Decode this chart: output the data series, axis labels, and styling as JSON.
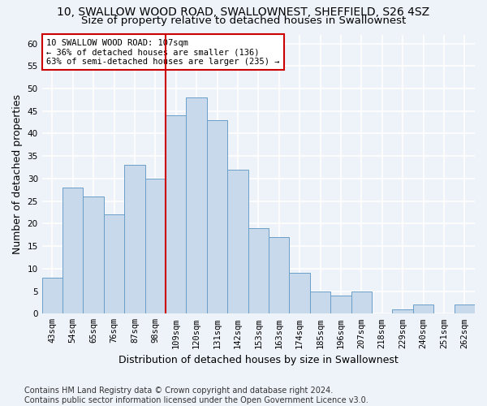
{
  "title": "10, SWALLOW WOOD ROAD, SWALLOWNEST, SHEFFIELD, S26 4SZ",
  "subtitle": "Size of property relative to detached houses in Swallownest",
  "xlabel": "Distribution of detached houses by size in Swallownest",
  "ylabel": "Number of detached properties",
  "categories": [
    "43sqm",
    "54sqm",
    "65sqm",
    "76sqm",
    "87sqm",
    "98sqm",
    "109sqm",
    "120sqm",
    "131sqm",
    "142sqm",
    "153sqm",
    "163sqm",
    "174sqm",
    "185sqm",
    "196sqm",
    "207sqm",
    "218sqm",
    "229sqm",
    "240sqm",
    "251sqm",
    "262sqm"
  ],
  "values": [
    8,
    28,
    26,
    22,
    33,
    30,
    44,
    48,
    43,
    32,
    19,
    17,
    9,
    5,
    4,
    5,
    0,
    1,
    2,
    0,
    2
  ],
  "bar_color": "#c9d9ec",
  "bar_edge_color": "#6a9fc8",
  "vline_color": "#cc0000",
  "annotation_text": "10 SWALLOW WOOD ROAD: 107sqm\n← 36% of detached houses are smaller (136)\n63% of semi-detached houses are larger (235) →",
  "annotation_box_color": "#ffffff",
  "annotation_box_edge": "#cc0000",
  "ylim": [
    0,
    62
  ],
  "yticks": [
    0,
    5,
    10,
    15,
    20,
    25,
    30,
    35,
    40,
    45,
    50,
    55,
    60
  ],
  "footer": "Contains HM Land Registry data © Crown copyright and database right 2024.\nContains public sector information licensed under the Open Government Licence v3.0.",
  "bg_color": "#eef2f9",
  "plot_bg_color": "#eef2f9",
  "grid_color": "#ffffff",
  "title_fontsize": 10,
  "subtitle_fontsize": 9.5,
  "ylabel_fontsize": 9,
  "xlabel_fontsize": 9,
  "tick_fontsize": 7.5,
  "footer_fontsize": 7,
  "annotation_fontsize": 7.5
}
